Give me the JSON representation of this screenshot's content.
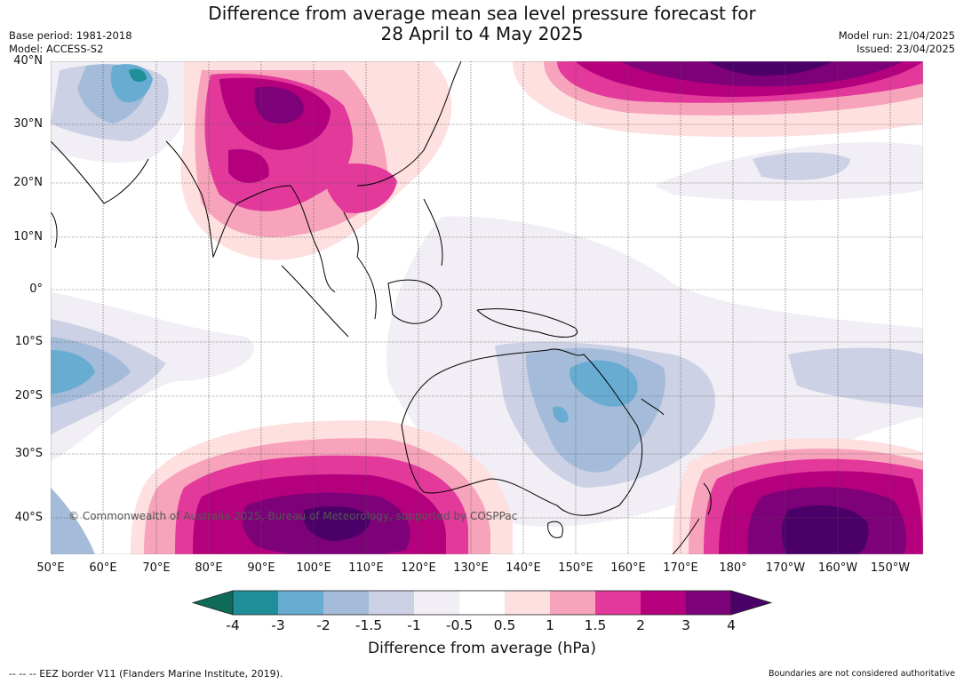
{
  "header": {
    "title_line1": "Difference from average mean sea level pressure forecast for",
    "title_line2": "28 April to 4 May 2025",
    "base_period": "Base period: 1981-2018",
    "model": "Model: ACCESS-S2",
    "model_run": "Model run: 21/04/2025",
    "issued": "Issued: 23/04/2025"
  },
  "map": {
    "lat_labels": [
      "40°N",
      "30°N",
      "20°N",
      "10°N",
      "0°",
      "10°S",
      "20°S",
      "30°S",
      "40°S"
    ],
    "lon_labels": [
      "50°E",
      "60°E",
      "70°E",
      "80°E",
      "90°E",
      "100°E",
      "110°E",
      "120°E",
      "130°E",
      "140°E",
      "150°E",
      "160°E",
      "170°E",
      "180°",
      "170°W",
      "160°W",
      "150°W"
    ],
    "copyright": "© Commonwealth of Australia 2025, Bureau of Meteorology, supported by COSPPac"
  },
  "colorbar": {
    "ticks": [
      "-4",
      "-3",
      "-2",
      "-1.5",
      "-1",
      "-0.5",
      "0.5",
      "1",
      "1.5",
      "2",
      "3",
      "4"
    ],
    "colors": [
      "#0e6b58",
      "#1e8f98",
      "#68acd2",
      "#a4bcd9",
      "#cdd1e5",
      "#f2eef5",
      "#ffffff",
      "#fde0df",
      "#f7a3bb",
      "#e2399a",
      "#b5007e",
      "#7d0178",
      "#4a0068"
    ],
    "label": "Difference from average (hPa)"
  },
  "footer": {
    "eez_note": "--  --  -- EEZ border V11 (Flanders Marine Institute, 2019).",
    "boundaries_note": "Boundaries are not considered authoritative"
  }
}
